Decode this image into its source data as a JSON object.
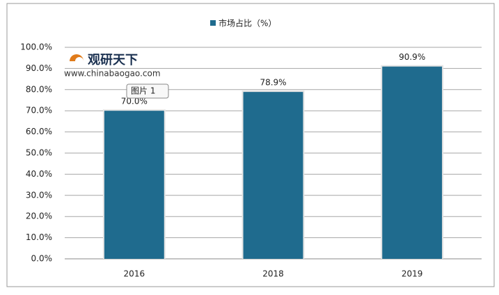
{
  "chart_data": {
    "type": "bar",
    "legend": "市场占比（%）",
    "categories": [
      "2016",
      "2018",
      "2019"
    ],
    "values": [
      70.0,
      78.9,
      90.9
    ],
    "value_labels": [
      "70.0%",
      "78.9%",
      "90.9%"
    ],
    "color": "#1f6b8e",
    "ylim": [
      0,
      100
    ],
    "yticks": [
      {
        "value": 0,
        "label": "0.0%"
      },
      {
        "value": 10,
        "label": "10.0%"
      },
      {
        "value": 20,
        "label": "20.0%"
      },
      {
        "value": 30,
        "label": "30.0%"
      },
      {
        "value": 40,
        "label": "40.0%"
      },
      {
        "value": 50,
        "label": "50.0%"
      },
      {
        "value": 60,
        "label": "60.0%"
      },
      {
        "value": 70,
        "label": "70.0%"
      },
      {
        "value": 80,
        "label": "80.0%"
      },
      {
        "value": 90,
        "label": "90.0%"
      },
      {
        "value": 100,
        "label": "100.0%"
      }
    ],
    "grid": true,
    "watermark": {
      "brand": "观研天下",
      "url": "www.chinabaogao.com"
    },
    "annotation": "图片 1"
  }
}
